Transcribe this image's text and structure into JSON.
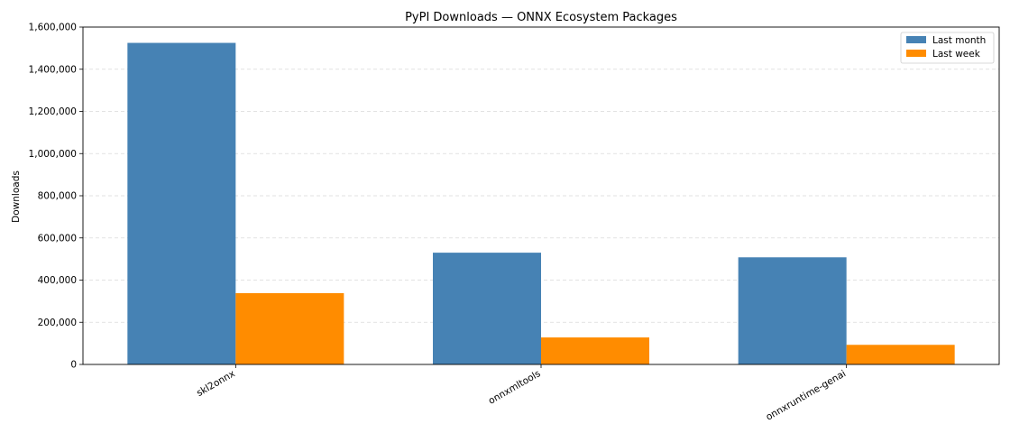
{
  "chart_data": {
    "type": "bar",
    "title": "PyPI Downloads — ONNX Ecosystem Packages",
    "xlabel": "",
    "ylabel": "Downloads",
    "categories": [
      "skl2onnx",
      "onnxmltools",
      "onnxruntime-genai"
    ],
    "series": [
      {
        "name": "Last month",
        "color": "#4682b4",
        "values": [
          1525000,
          530000,
          508000
        ]
      },
      {
        "name": "Last week",
        "color": "#ff8c00",
        "values": [
          338000,
          128000,
          93000
        ]
      }
    ],
    "ylim": [
      0,
      1600000
    ],
    "yticks": [
      0,
      200000,
      400000,
      600000,
      800000,
      1000000,
      1200000,
      1400000,
      1600000
    ],
    "ytick_labels": [
      "0",
      "200,000",
      "400,000",
      "600,000",
      "800,000",
      "1,000,000",
      "1,200,000",
      "1,400,000",
      "1,600,000"
    ],
    "grid": "y, dashed",
    "legend_position": "top-right"
  }
}
